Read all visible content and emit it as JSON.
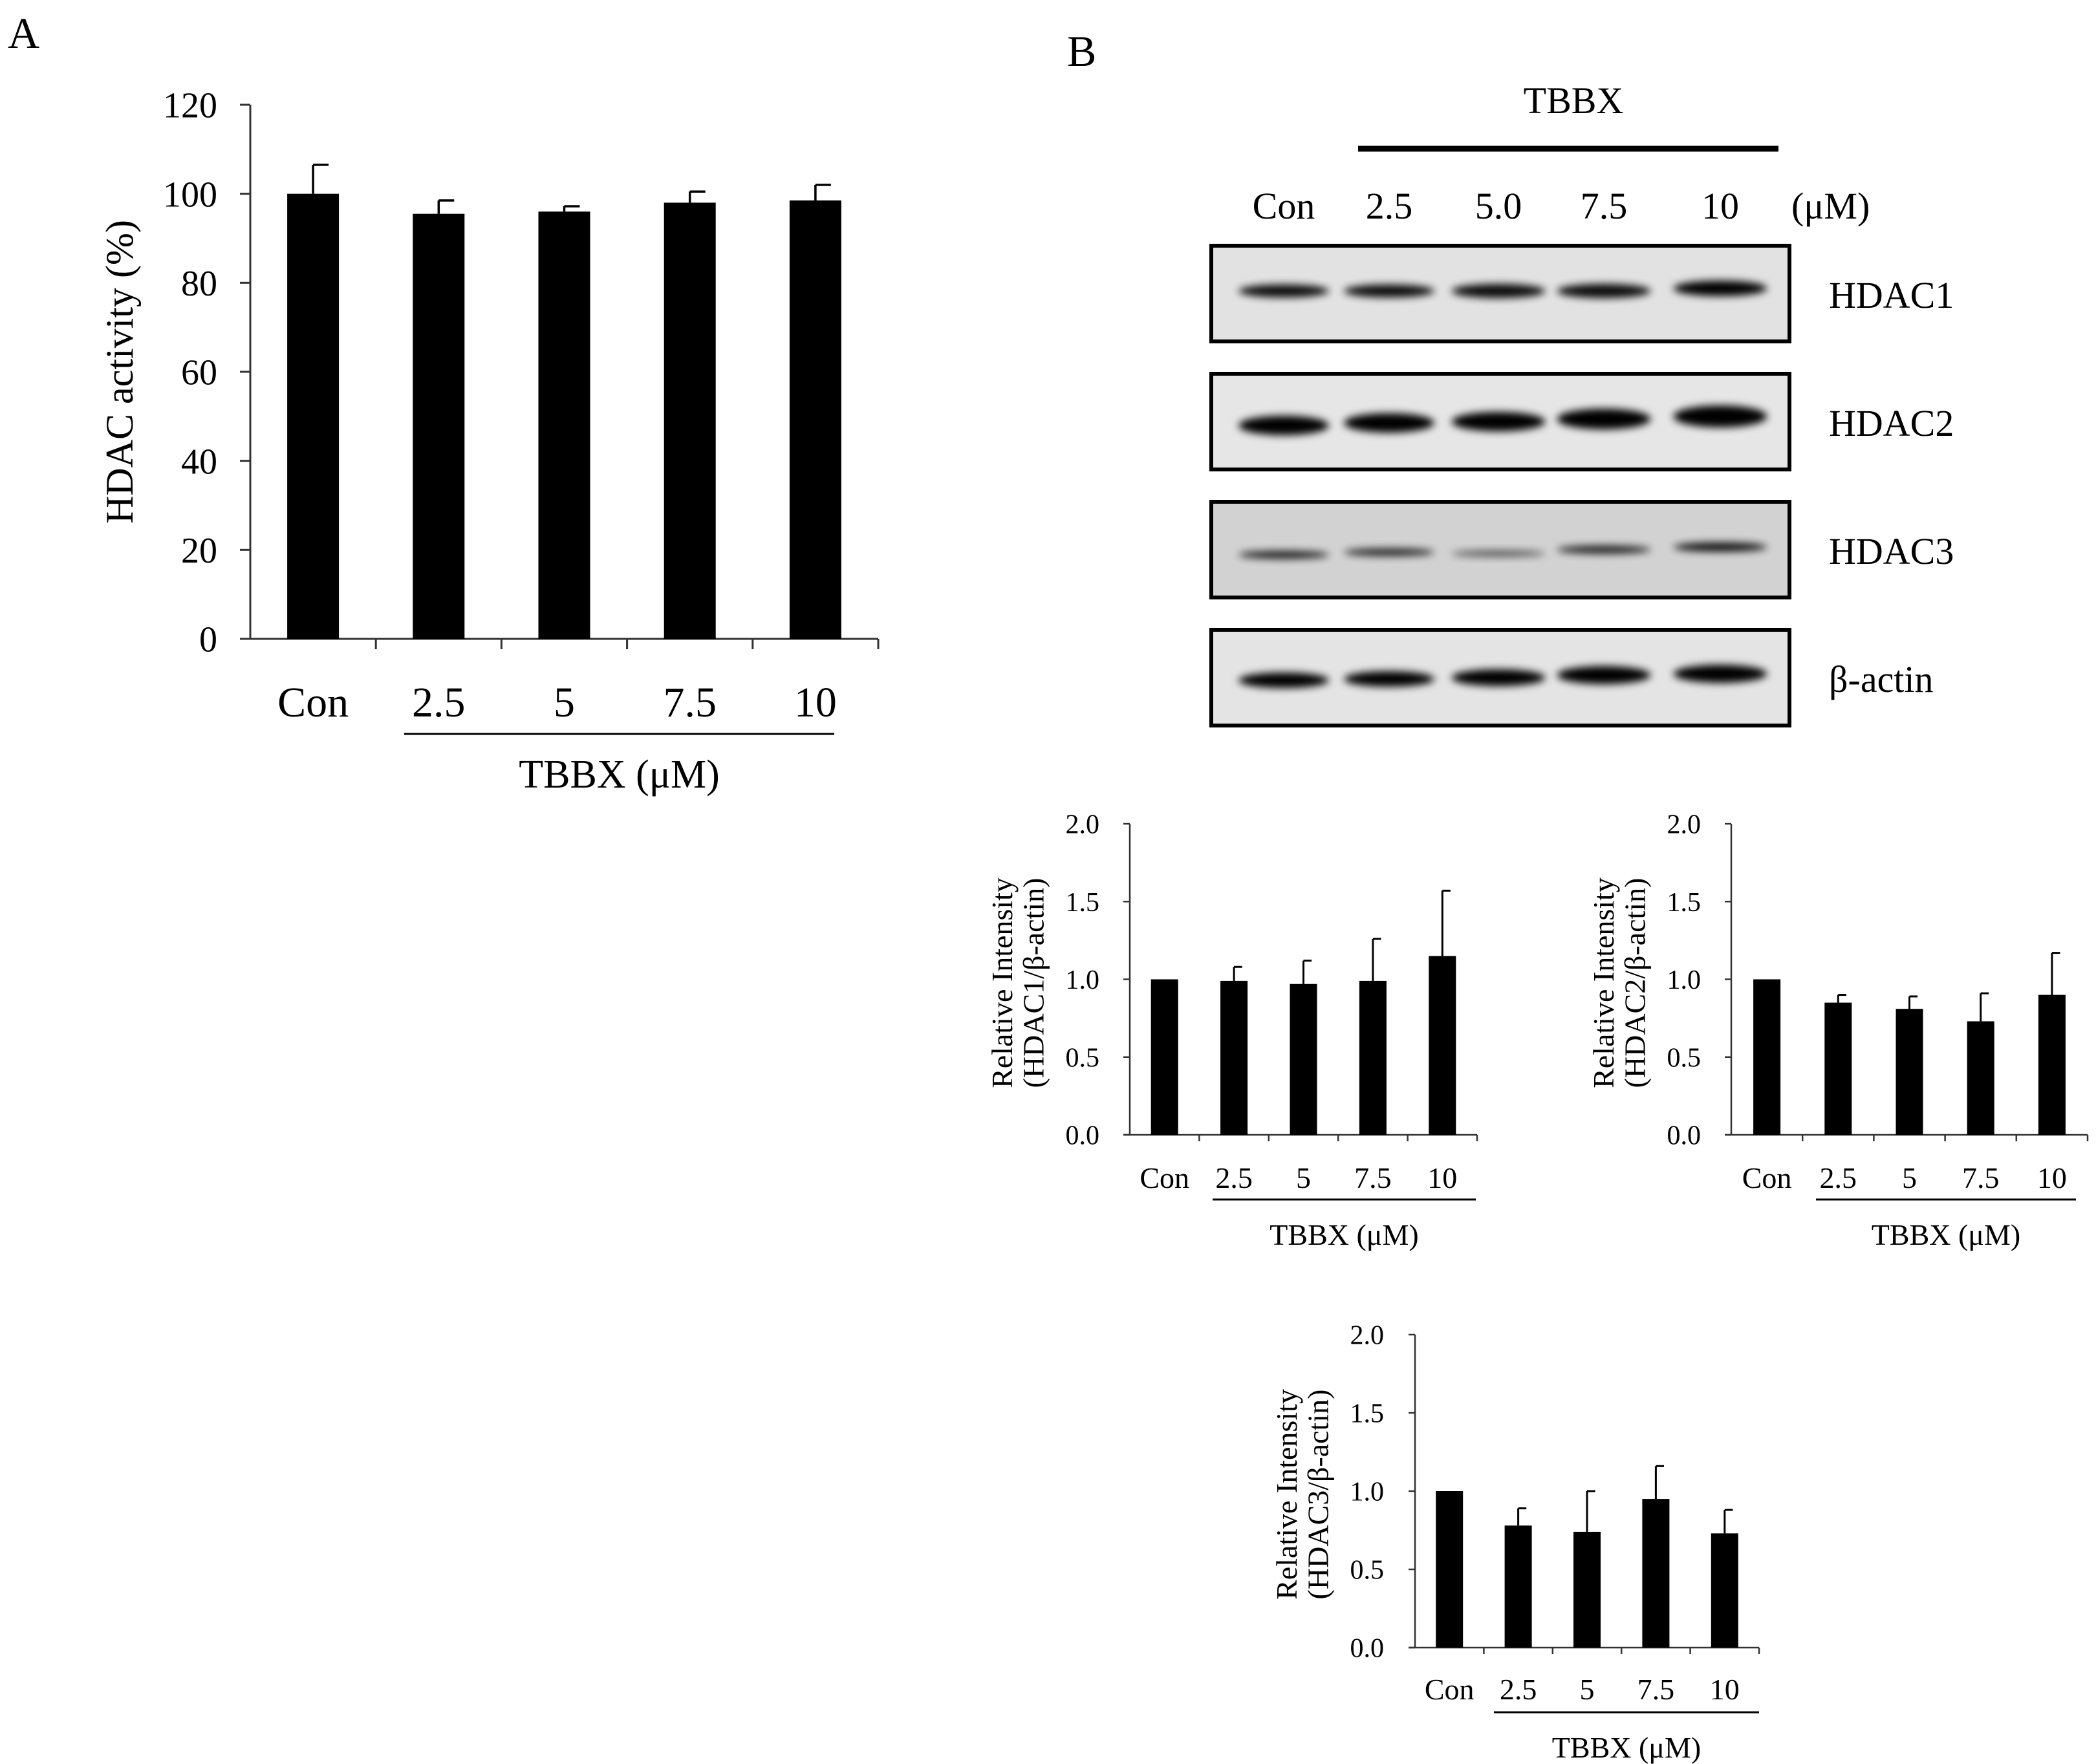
{
  "panels": {
    "a": "A",
    "b": "B"
  },
  "blot": {
    "treatment": "TBBX",
    "unit": "(μM)",
    "lanes": [
      "Con",
      "2.5",
      "5.0",
      "7.5",
      "10"
    ],
    "proteins": [
      "HDAC1",
      "HDAC2",
      "HDAC3",
      "β-actin"
    ]
  },
  "chart_data": [
    {
      "id": "A",
      "type": "bar",
      "categories": [
        "Con",
        "2.5",
        "5",
        "7.5",
        "10"
      ],
      "values": [
        100,
        95.5,
        96,
        98,
        98.5
      ],
      "errors": [
        6.5,
        3,
        1.2,
        2.5,
        3.5
      ],
      "ylabel": "HDAC activity (%)",
      "xlabel": "TBBX (μM)",
      "ylim": [
        0,
        120
      ],
      "yticks": [
        "0",
        "20",
        "40",
        "60",
        "80",
        "100",
        "120"
      ]
    },
    {
      "id": "B1",
      "type": "bar",
      "categories": [
        "Con",
        "2.5",
        "5",
        "7.5",
        "10"
      ],
      "values": [
        1.0,
        0.99,
        0.97,
        0.99,
        1.15
      ],
      "errors": [
        0,
        0.09,
        0.15,
        0.27,
        0.42
      ],
      "ylabel": [
        "Relative Intensity",
        "(HDAC1/β-actin)"
      ],
      "xlabel": "TBBX (μM)",
      "ylim": [
        0,
        2.0
      ],
      "yticks": [
        "0.0",
        "0.5",
        "1.0",
        "1.5",
        "2.0"
      ]
    },
    {
      "id": "B2",
      "type": "bar",
      "categories": [
        "Con",
        "2.5",
        "5",
        "7.5",
        "10"
      ],
      "values": [
        1.0,
        0.85,
        0.81,
        0.73,
        0.9
      ],
      "errors": [
        0,
        0.05,
        0.08,
        0.18,
        0.27
      ],
      "ylabel": [
        "Relative Intensity",
        "(HDAC2/β-actin)"
      ],
      "xlabel": "TBBX (μM)",
      "ylim": [
        0,
        2.0
      ],
      "yticks": [
        "0.0",
        "0.5",
        "1.0",
        "1.5",
        "2.0"
      ]
    },
    {
      "id": "B3",
      "type": "bar",
      "categories": [
        "Con",
        "2.5",
        "5",
        "7.5",
        "10"
      ],
      "values": [
        1.0,
        0.78,
        0.74,
        0.95,
        0.73
      ],
      "errors": [
        0,
        0.11,
        0.26,
        0.21,
        0.15
      ],
      "ylabel": [
        "Relative Intensity",
        "(HDAC3/β-actin)"
      ],
      "xlabel": "TBBX (μM)",
      "ylim": [
        0,
        2.0
      ],
      "yticks": [
        "0.0",
        "0.5",
        "1.0",
        "1.5",
        "2.0"
      ]
    }
  ]
}
